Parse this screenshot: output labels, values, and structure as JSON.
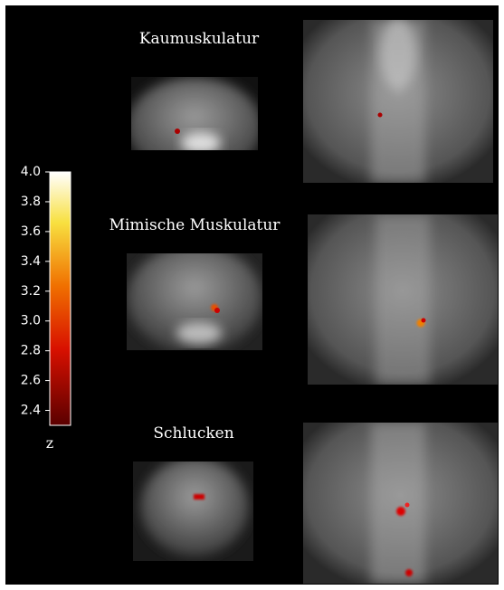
{
  "panels": [
    {
      "title": "Kaumuskulatur"
    },
    {
      "title": "Mimische Muskulatur"
    },
    {
      "title": "Schlucken"
    }
  ],
  "colorbar": {
    "label": "z",
    "clim": [
      2.3,
      4.0
    ],
    "ticks": [
      {
        "value": 4,
        "label": "4.0"
      },
      {
        "value": 3.8,
        "label": "3.8"
      },
      {
        "value": 3.6,
        "label": "3.6"
      },
      {
        "value": 3.4,
        "label": "3.4"
      },
      {
        "value": 3.2,
        "label": "3.2"
      },
      {
        "value": 3,
        "label": "3.0"
      },
      {
        "value": 2.8,
        "label": "2.8"
      },
      {
        "value": 2.6,
        "label": "2.6"
      },
      {
        "value": 2.4,
        "label": "2.4"
      }
    ]
  }
}
